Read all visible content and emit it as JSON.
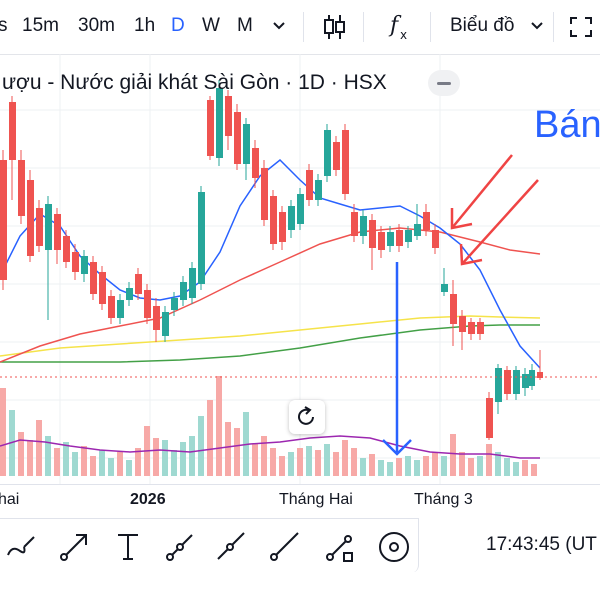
{
  "toolbar": {
    "intervals": [
      "15m",
      "30m",
      "1h",
      "D",
      "W",
      "M"
    ],
    "active_interval": "D",
    "chart_type_label": "Biểu đồ",
    "icons": [
      "chevron-down-icon",
      "candles-icon",
      "fx-icon",
      "chevron-down-icon",
      "expand-icon"
    ]
  },
  "legend": {
    "title": "ượu - Nước giải khát Sài Gòn · 1D · HSX"
  },
  "annotation": {
    "text": "Bán"
  },
  "timeaxis": {
    "labels": [
      "hai",
      "2026",
      "Tháng Hai",
      "Tháng 3"
    ]
  },
  "clock": {
    "text": "17:43:45 (UT"
  },
  "drawing_tools": [
    "brush-icon",
    "arrow-icon",
    "text-icon",
    "trend-line-icon",
    "ray-icon",
    "line-icon",
    "extended-line-icon",
    "path-icon",
    "target-icon"
  ],
  "colors": {
    "up": "#26a69a",
    "down": "#ef5350",
    "accent": "#2962ff",
    "ma20": "#2962ff",
    "ma50": "#ef5350",
    "ma100": "#f5e34a",
    "ma200": "#43a047",
    "volume_ma": "#9c27b0"
  }
}
